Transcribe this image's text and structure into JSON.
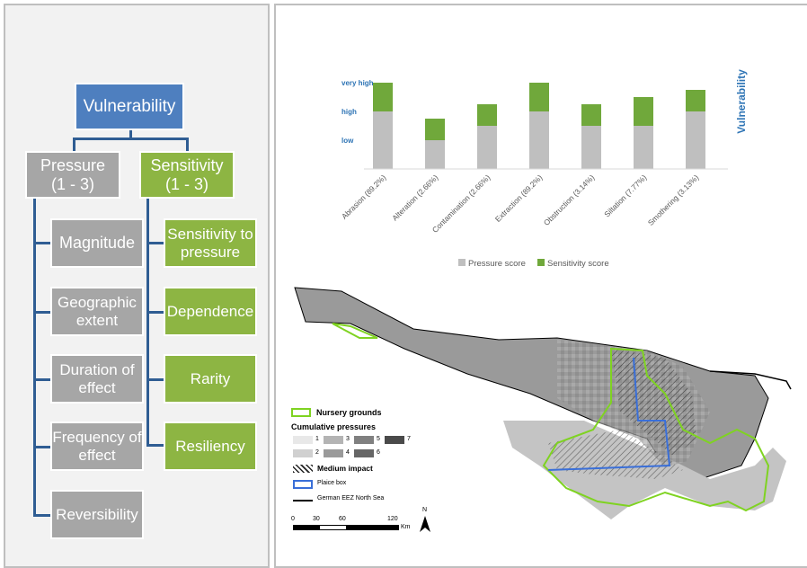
{
  "diagram": {
    "root": "Vulnerability",
    "pressure": {
      "label": "Pressure\n(1 - 3)",
      "items": [
        "Magnitude",
        "Geographic extent",
        "Duration of effect",
        "Frequency of effect",
        "Reversibility"
      ]
    },
    "sensitivity": {
      "label": "Sensitivity\n(1 - 3)",
      "items": [
        "Sensitivity to pressure",
        "Dependence",
        "Rarity",
        "Resiliency"
      ]
    }
  },
  "chart_data": {
    "type": "bar",
    "stacked": true,
    "categories": [
      "Abrasion (89.2%)",
      "Alteration (2.66%)",
      "Contamination (2.66%)",
      "Extraction (89.2%)",
      "Obstruction (3.14%)",
      "Siltation (7.77%)",
      "Smothering (3.13%)"
    ],
    "series": [
      {
        "name": "Pressure score",
        "color": "#bfbfbf",
        "values": [
          2,
          1,
          1.5,
          2,
          1.5,
          1.5,
          2
        ]
      },
      {
        "name": "Sensitivity score",
        "color": "#70a83b",
        "values": [
          1,
          0.75,
          0.75,
          1,
          0.75,
          1,
          0.75
        ]
      }
    ],
    "ylabel": "Vulnerability",
    "ytick_labels": [
      "low",
      "high",
      "very high"
    ],
    "ylim": [
      0,
      4
    ],
    "legend_position": "bottom"
  },
  "map": {
    "legend": {
      "nursery": "Nursery grounds",
      "cumulative_title": "Cumulative pressures",
      "levels": [
        "1",
        "2",
        "3",
        "4",
        "5",
        "6",
        "7"
      ],
      "level_colors": [
        "#e8e8e8",
        "#d0d0d0",
        "#b4b4b4",
        "#9a9a9a",
        "#808080",
        "#666666",
        "#4a4a4a"
      ],
      "medium_impact": "Medium impact",
      "plaice_box": "Plaice box",
      "eez": "German EEZ North Sea"
    },
    "scale_ticks": [
      "0",
      "30",
      "60",
      "120"
    ],
    "scale_unit": "Km",
    "north_label": "N",
    "colors": {
      "nursery": "#7fd321",
      "plaice": "#3a6fd8",
      "eez": "#000000"
    }
  }
}
